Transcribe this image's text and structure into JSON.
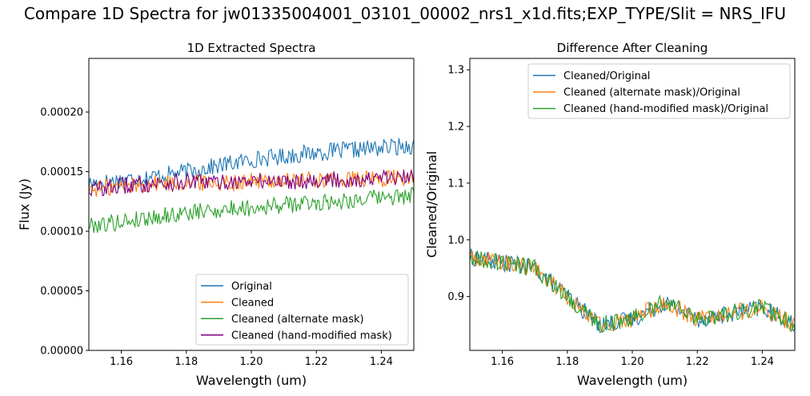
{
  "suptitle": "Compare 1D Spectra for jw01335004001_03101_00002_nrs1_x1d.fits;EXP_TYPE/Slit = NRS_IFU",
  "colors": {
    "blue": "#1f77b4",
    "orange": "#ff7f0e",
    "green": "#2ca02c",
    "purple": "#800080"
  },
  "chart_data": [
    {
      "type": "line",
      "title": "1D Extracted Spectra",
      "xlabel": "Wavelength (um)",
      "ylabel": "Flux (Jy)",
      "xlim": [
        1.15,
        1.25
      ],
      "ylim": [
        0,
        0.000245
      ],
      "xticks": [
        1.16,
        1.18,
        1.2,
        1.22,
        1.24
      ],
      "xtick_labels": [
        "1.16",
        "1.18",
        "1.20",
        "1.22",
        "1.24"
      ],
      "yticks": [
        0,
        5e-05,
        0.0001,
        0.00015,
        0.0002
      ],
      "ytick_labels": [
        "0.00000",
        "0.00005",
        "0.00010",
        "0.00015",
        "0.00020"
      ],
      "legend_position": "lower-right",
      "series": [
        {
          "name": "Original",
          "color": "#1f77b4",
          "x": [
            1.15,
            1.16,
            1.17,
            1.18,
            1.19,
            1.2,
            1.21,
            1.22,
            1.23,
            1.24,
            1.25
          ],
          "values": [
            0.00014,
            0.000143,
            0.000146,
            0.00015,
            0.000155,
            0.00016,
            0.000163,
            0.000166,
            0.000168,
            0.00017,
            0.000172
          ]
        },
        {
          "name": "Cleaned",
          "color": "#ff7f0e",
          "x": [
            1.15,
            1.16,
            1.17,
            1.18,
            1.19,
            1.2,
            1.21,
            1.22,
            1.23,
            1.24,
            1.25
          ],
          "values": [
            0.000135,
            0.000138,
            0.00014,
            0.000141,
            0.000141,
            0.000142,
            0.000142,
            0.000143,
            0.000143,
            0.000144,
            0.000145
          ]
        },
        {
          "name": "Cleaned (alternate mask)",
          "color": "#2ca02c",
          "x": [
            1.15,
            1.16,
            1.17,
            1.18,
            1.19,
            1.2,
            1.21,
            1.22,
            1.23,
            1.24,
            1.25
          ],
          "values": [
            0.000105,
            0.000108,
            0.000112,
            0.000115,
            0.000118,
            0.00012,
            0.000122,
            0.000124,
            0.000126,
            0.000128,
            0.00013
          ]
        },
        {
          "name": "Cleaned (hand-modified mask)",
          "color": "#800080",
          "x": [
            1.15,
            1.16,
            1.17,
            1.18,
            1.19,
            1.2,
            1.21,
            1.22,
            1.23,
            1.24,
            1.25
          ],
          "values": [
            0.000135,
            0.000138,
            0.00014,
            0.000141,
            0.000141,
            0.000142,
            0.000142,
            0.000143,
            0.000143,
            0.000144,
            0.000145
          ]
        }
      ]
    },
    {
      "type": "line",
      "title": "Difference After Cleaning",
      "xlabel": "Wavelength (um)",
      "ylabel": "Cleaned/Original",
      "xlim": [
        1.15,
        1.25
      ],
      "ylim": [
        0.805,
        1.32
      ],
      "xticks": [
        1.16,
        1.18,
        1.2,
        1.22,
        1.24
      ],
      "xtick_labels": [
        "1.16",
        "1.18",
        "1.20",
        "1.22",
        "1.24"
      ],
      "yticks": [
        0.9,
        1.0,
        1.1,
        1.2,
        1.3
      ],
      "ytick_labels": [
        "0.9",
        "1.0",
        "1.1",
        "1.2",
        "1.3"
      ],
      "legend_position": "upper-right",
      "series": [
        {
          "name": "Cleaned/Original",
          "color": "#1f77b4",
          "x": [
            1.15,
            1.16,
            1.17,
            1.18,
            1.19,
            1.2,
            1.21,
            1.22,
            1.23,
            1.24,
            1.25
          ],
          "values": [
            0.97,
            0.96,
            0.95,
            0.9,
            0.85,
            0.86,
            0.89,
            0.86,
            0.87,
            0.88,
            0.85
          ]
        },
        {
          "name": "Cleaned (alternate mask)/Original",
          "color": "#ff7f0e",
          "x": [
            1.15,
            1.16,
            1.17,
            1.18,
            1.19,
            1.2,
            1.21,
            1.22,
            1.23,
            1.24,
            1.25
          ],
          "values": [
            0.97,
            0.96,
            0.95,
            0.9,
            0.85,
            0.86,
            0.89,
            0.86,
            0.87,
            0.88,
            0.85
          ]
        },
        {
          "name": "Cleaned (hand-modified mask)/Original",
          "color": "#2ca02c",
          "x": [
            1.15,
            1.16,
            1.17,
            1.18,
            1.19,
            1.2,
            1.21,
            1.22,
            1.23,
            1.24,
            1.25
          ],
          "values": [
            0.97,
            0.96,
            0.95,
            0.9,
            0.85,
            0.86,
            0.89,
            0.86,
            0.87,
            0.88,
            0.85
          ]
        }
      ]
    }
  ]
}
